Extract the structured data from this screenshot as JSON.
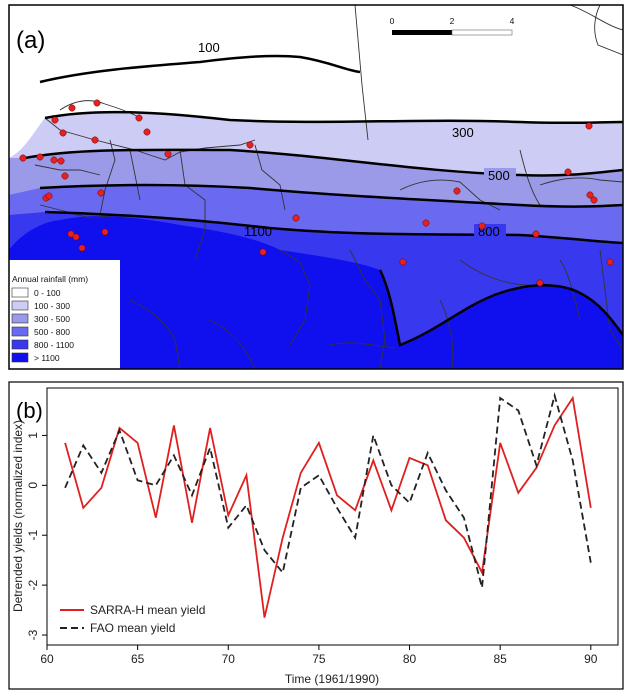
{
  "map": {
    "panel_label": "(a)",
    "scale_ticks": [
      "0",
      "2",
      "4"
    ],
    "isohyets": [
      "100",
      "300",
      "500",
      "800",
      "1100"
    ],
    "legend": {
      "title": "Annual rainfall (mm)",
      "items": [
        {
          "label": "0 - 100",
          "color": "#ffffff"
        },
        {
          "label": "100 - 300",
          "color": "#ccccf4"
        },
        {
          "label": "300 - 500",
          "color": "#9a9ae8"
        },
        {
          "label": "500 - 800",
          "color": "#6a6af0"
        },
        {
          "label": "800 - 1100",
          "color": "#3838ee"
        },
        {
          "label": "> 1100",
          "color": "#1010ee"
        }
      ]
    },
    "station_color": "#e82020"
  },
  "plot": {
    "panel_label": "(b)",
    "xlabel": "Time (1961/1990)",
    "ylabel": "Detrended yields (normalized index)",
    "xticks": [
      "60",
      "65",
      "70",
      "75",
      "80",
      "85",
      "90"
    ],
    "yticks": [
      "-3",
      "-2",
      "-1",
      "0",
      "1"
    ]
  },
  "chart_data": {
    "type": "line",
    "x": [
      61,
      62,
      63,
      64,
      65,
      66,
      67,
      68,
      69,
      70,
      71,
      72,
      73,
      74,
      75,
      76,
      77,
      78,
      79,
      80,
      81,
      82,
      83,
      84,
      85,
      86,
      87,
      88,
      89,
      90
    ],
    "series": [
      {
        "name": "SARRA-H mean yield",
        "color": "#e02020",
        "style": "solid",
        "values": [
          0.85,
          -0.45,
          -0.05,
          1.15,
          0.85,
          -0.65,
          1.2,
          -0.75,
          1.15,
          -0.6,
          0.2,
          -2.65,
          -1.05,
          0.25,
          0.85,
          -0.2,
          -0.5,
          0.5,
          -0.5,
          0.55,
          0.4,
          -0.7,
          -1.05,
          -1.75,
          0.85,
          -0.15,
          0.35,
          1.2,
          1.75,
          -0.45
        ]
      },
      {
        "name": "FAO mean yield",
        "color": "#222222",
        "style": "dashed",
        "values": [
          -0.05,
          0.8,
          0.25,
          1.1,
          0.1,
          0.0,
          0.6,
          -0.2,
          0.75,
          -0.85,
          -0.4,
          -1.3,
          -1.75,
          -0.05,
          0.2,
          -0.45,
          -1.05,
          1.0,
          0.0,
          -0.35,
          0.65,
          -0.1,
          -0.65,
          -2.05,
          1.75,
          1.5,
          0.4,
          1.8,
          0.5,
          -1.55
        ]
      }
    ],
    "xlabel": "Time (1961/1990)",
    "ylabel": "Detrended yields (normalized index)",
    "xlim": [
      60,
      91.5
    ],
    "ylim": [
      -3.2,
      1.95
    ],
    "grid": false,
    "legend_position": "bottom-left"
  }
}
